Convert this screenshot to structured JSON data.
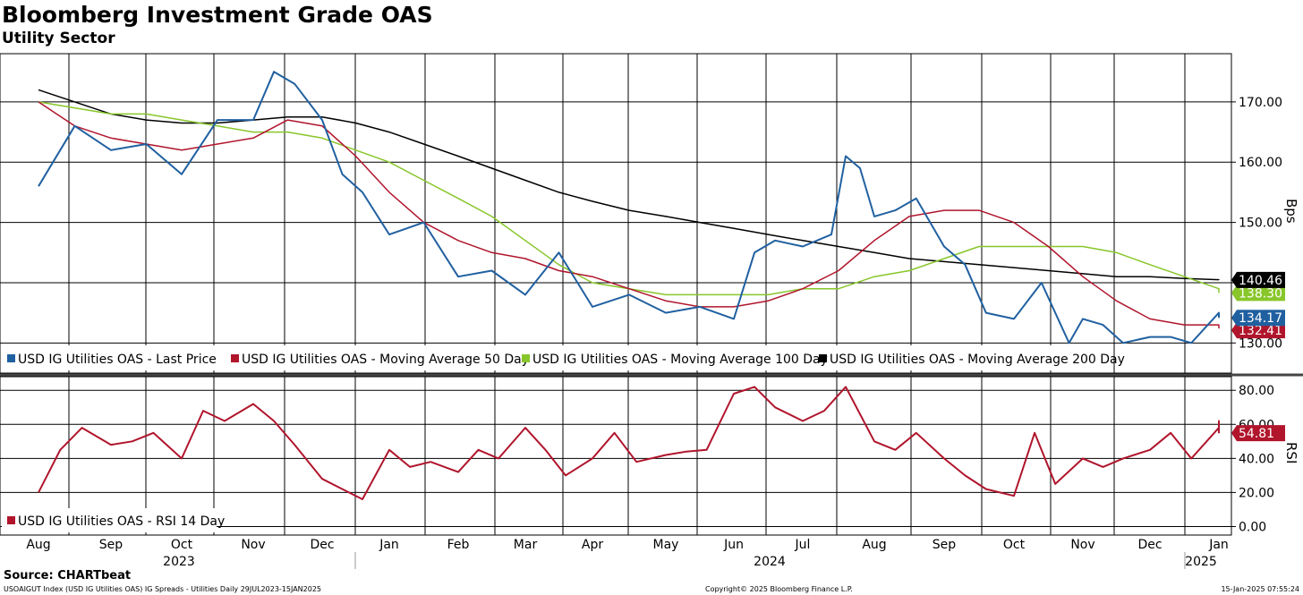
{
  "colors": {
    "last_price": "#2060a0",
    "ma50": "#b0152c",
    "ma100": "#88c62a",
    "ma200": "#000000",
    "rsi": "#b0152c"
  },
  "header": {
    "title": "Bloomberg Investment Grade OAS",
    "subtitle": "Utility Sector"
  },
  "footer": {
    "source": "Source: CHARTbeat",
    "left": "USOAIGUT Index (USD IG Utilities OAS) IG Spreads - Utilities  Daily 29JUL2023-15JAN2025",
    "center": "Copyright© 2025 Bloomberg Finance L.P.",
    "right": "15-Jan-2025 07:55:24"
  },
  "chart_data": [
    {
      "type": "line",
      "title": "Bloomberg Investment Grade OAS",
      "subtitle": "Utility Sector",
      "ylabel": "Bps",
      "ylim": [
        125,
        178
      ],
      "yticks": [
        130,
        140,
        150,
        160,
        170
      ],
      "ytick_labels": [
        "130.00",
        "140.00",
        "150.00",
        "160.00",
        "170.00"
      ],
      "grid": true,
      "legend_position": "bottom-left",
      "months": [
        "Aug",
        "Sep",
        "Oct",
        "Nov",
        "Dec",
        "Jan",
        "Feb",
        "Mar",
        "Apr",
        "May",
        "Jun",
        "Jul",
        "Aug",
        "Sep",
        "Oct",
        "Nov",
        "Dec",
        "Jan"
      ],
      "years": [
        "2023",
        "2024",
        "2025"
      ],
      "series": [
        {
          "name": "USD IG Utilities OAS - Last Price",
          "color": "#2060a0",
          "last_value": "134.17",
          "t": [
            0.0,
            0.5,
            1.0,
            1.5,
            2.0,
            2.5,
            3.0,
            3.3,
            3.6,
            4.0,
            4.3,
            4.6,
            5.0,
            5.5,
            6.0,
            6.5,
            7.0,
            7.5,
            8.0,
            8.5,
            9.0,
            9.5,
            10.0,
            10.3,
            10.6,
            11.0,
            11.4,
            11.6,
            11.8,
            12.0,
            12.3,
            12.6,
            13.0,
            13.3,
            13.6,
            14.0,
            14.4,
            14.8,
            15.0,
            15.3,
            15.6,
            16.0,
            16.3,
            16.6,
            17.0,
            17.3
          ],
          "values": [
            156,
            166,
            162,
            163,
            158,
            167,
            167,
            175,
            173,
            167,
            158,
            155,
            148,
            150,
            141,
            142,
            138,
            145,
            136,
            138,
            135,
            136,
            134,
            145,
            147,
            146,
            148,
            161,
            159,
            151,
            152,
            154,
            146,
            143,
            135,
            134,
            140,
            130,
            134,
            133,
            130,
            131,
            131,
            130,
            135,
            134.17
          ]
        },
        {
          "name": "USD IG Utilities OAS - Moving Average 50 Day",
          "color": "#b0152c",
          "last_value": "132.41",
          "t": [
            0.0,
            0.5,
            1.0,
            1.5,
            2.0,
            2.5,
            3.0,
            3.5,
            4.0,
            4.5,
            5.0,
            5.5,
            6.0,
            6.5,
            7.0,
            7.5,
            8.0,
            8.5,
            9.0,
            9.5,
            10.0,
            10.5,
            11.0,
            11.5,
            12.0,
            12.5,
            13.0,
            13.5,
            14.0,
            14.5,
            15.0,
            15.5,
            16.0,
            16.5,
            17.0,
            17.3
          ],
          "values": [
            170,
            166,
            164,
            163,
            162,
            163,
            164,
            167,
            166,
            161,
            155,
            150,
            147,
            145,
            144,
            142,
            141,
            139,
            137,
            136,
            136,
            137,
            139,
            142,
            147,
            151,
            152,
            152,
            150,
            146,
            141,
            137,
            134,
            133,
            133,
            132.41
          ]
        },
        {
          "name": "USD IG Utilities OAS - Moving Average 100 Day",
          "color": "#88c62a",
          "last_value": "138.30",
          "t": [
            0.0,
            0.5,
            1.0,
            1.5,
            2.0,
            2.5,
            3.0,
            3.5,
            4.0,
            4.5,
            5.0,
            5.5,
            6.0,
            6.5,
            7.0,
            7.5,
            8.0,
            8.5,
            9.0,
            9.5,
            10.0,
            10.5,
            11.0,
            11.5,
            12.0,
            12.5,
            13.0,
            13.5,
            14.0,
            14.5,
            15.0,
            15.5,
            16.0,
            16.5,
            17.0,
            17.3
          ],
          "values": [
            170,
            169,
            168,
            168,
            167,
            166,
            165,
            165,
            164,
            162,
            160,
            157,
            154,
            151,
            147,
            143,
            140,
            139,
            138,
            138,
            138,
            138,
            139,
            139,
            141,
            142,
            144,
            146,
            146,
            146,
            146,
            145,
            143,
            141,
            139,
            138.3
          ]
        },
        {
          "name": "USD IG Utilities OAS - Moving Average 200 Day",
          "color": "#000000",
          "last_value": "140.46",
          "t": [
            0.0,
            0.5,
            1.0,
            1.5,
            2.0,
            2.5,
            3.0,
            3.5,
            4.0,
            4.5,
            5.0,
            5.5,
            6.0,
            6.5,
            7.0,
            7.5,
            8.0,
            8.5,
            9.0,
            9.5,
            10.0,
            10.5,
            11.0,
            11.5,
            12.0,
            12.5,
            13.0,
            13.5,
            14.0,
            14.5,
            15.0,
            15.5,
            16.0,
            16.5,
            17.0,
            17.3
          ],
          "values": [
            172,
            170,
            168,
            167,
            166.5,
            166.5,
            167,
            167.5,
            167.5,
            166.5,
            165,
            163,
            161,
            159,
            157,
            155,
            153.5,
            152,
            151,
            150,
            149,
            148,
            147,
            146,
            145,
            144,
            143.5,
            143,
            142.5,
            142,
            141.5,
            141,
            141,
            140.7,
            140.5,
            140.46
          ]
        }
      ]
    },
    {
      "type": "line",
      "ylabel": "RSI",
      "ylim": [
        -5,
        88
      ],
      "yticks": [
        0,
        20,
        40,
        60,
        80
      ],
      "ytick_labels": [
        "0.00",
        "20.00",
        "40.00",
        "60.00",
        "80.00"
      ],
      "grid": true,
      "legend_position": "bottom-left",
      "series": [
        {
          "name": "USD IG Utilities OAS - RSI 14 Day",
          "color": "#b0152c",
          "last_value": "54.81",
          "t": [
            0.0,
            0.3,
            0.6,
            1.0,
            1.3,
            1.6,
            2.0,
            2.3,
            2.6,
            3.0,
            3.3,
            3.6,
            4.0,
            4.3,
            4.6,
            5.0,
            5.3,
            5.6,
            6.0,
            6.3,
            6.6,
            7.0,
            7.3,
            7.6,
            8.0,
            8.3,
            8.6,
            9.0,
            9.3,
            9.6,
            10.0,
            10.3,
            10.6,
            11.0,
            11.3,
            11.6,
            12.0,
            12.3,
            12.6,
            13.0,
            13.3,
            13.6,
            14.0,
            14.3,
            14.6,
            15.0,
            15.3,
            15.6,
            16.0,
            16.3,
            16.6,
            17.0,
            17.15,
            17.3
          ],
          "values": [
            20,
            45,
            58,
            48,
            50,
            55,
            40,
            68,
            62,
            72,
            62,
            48,
            28,
            22,
            16,
            45,
            35,
            38,
            32,
            45,
            40,
            58,
            45,
            30,
            40,
            55,
            38,
            42,
            44,
            45,
            78,
            82,
            70,
            62,
            68,
            82,
            50,
            45,
            55,
            40,
            30,
            22,
            18,
            55,
            25,
            40,
            35,
            40,
            45,
            55,
            40,
            58,
            62,
            54.81
          ]
        }
      ]
    }
  ]
}
